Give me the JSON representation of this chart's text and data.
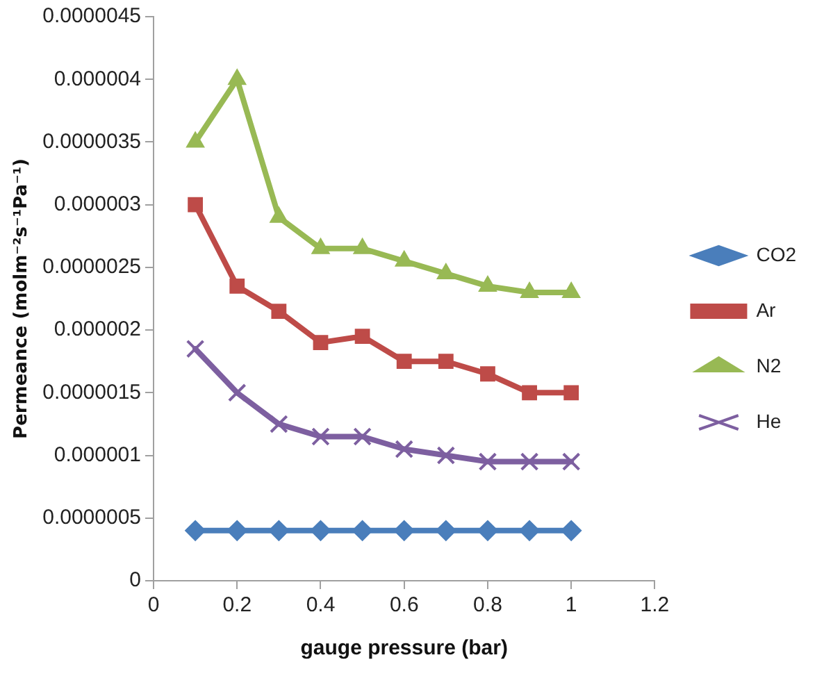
{
  "chart_data": {
    "type": "line",
    "xlabel": "gauge pressure (bar)",
    "ylabel": "Permeance (molm⁻²s⁻¹Pa⁻¹)",
    "x": [
      0.1,
      0.2,
      0.3,
      0.4,
      0.5,
      0.6,
      0.7,
      0.8,
      0.9,
      1.0
    ],
    "series": [
      {
        "name": "CO2",
        "color": "#4a7ebb",
        "marker": "diamond",
        "values": [
          4e-07,
          4e-07,
          4e-07,
          4e-07,
          4e-07,
          4e-07,
          4e-07,
          4e-07,
          4e-07,
          4e-07
        ]
      },
      {
        "name": "Ar",
        "color": "#be4b48",
        "marker": "square",
        "values": [
          3e-06,
          2.35e-06,
          2.15e-06,
          1.9e-06,
          1.95e-06,
          1.75e-06,
          1.75e-06,
          1.65e-06,
          1.5e-06,
          1.5e-06
        ]
      },
      {
        "name": "N2",
        "color": "#98b954",
        "marker": "triangle",
        "values": [
          3.5e-06,
          4e-06,
          2.9e-06,
          2.65e-06,
          2.65e-06,
          2.55e-06,
          2.45e-06,
          2.35e-06,
          2.3e-06,
          2.3e-06
        ]
      },
      {
        "name": "He",
        "color": "#7d5fa0",
        "marker": "cross",
        "values": [
          1.85e-06,
          1.5e-06,
          1.25e-06,
          1.15e-06,
          1.15e-06,
          1.05e-06,
          1e-06,
          9.5e-07,
          9.5e-07,
          9.5e-07
        ]
      }
    ],
    "xlim": [
      0,
      1.2
    ],
    "xticks": [
      0,
      0.2,
      0.4,
      0.6,
      0.8,
      1,
      1.2
    ],
    "ylim": [
      0,
      4.5e-06
    ],
    "yticks": [
      0,
      {
        "value": 5e-07,
        "label": "0.0000005"
      },
      {
        "value": 1e-06,
        "label": "0.000001"
      },
      {
        "value": 1.5e-06,
        "label": "0.0000015"
      },
      {
        "value": 2e-06,
        "label": "0.000002"
      },
      {
        "value": 2.5e-06,
        "label": "0.0000025"
      },
      {
        "value": 3e-06,
        "label": "0.000003"
      },
      {
        "value": 3.5e-06,
        "label": "0.0000035"
      },
      {
        "value": 4e-06,
        "label": "0.000004"
      },
      {
        "value": 4.5e-06,
        "label": "0.0000045"
      }
    ],
    "grid": false,
    "legend": "right",
    "line_style": "solid"
  }
}
